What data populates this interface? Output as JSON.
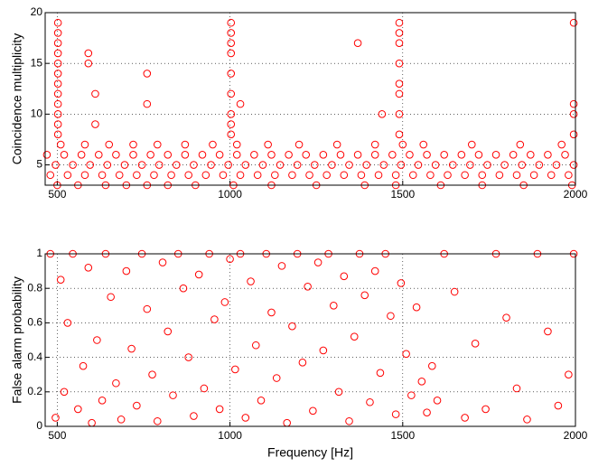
{
  "chart_data": [
    {
      "type": "scatter",
      "ylabel": "Coincidence multiplicity",
      "color": "#ff0000",
      "grid": true,
      "xlim": [
        465,
        2000
      ],
      "xticks": [
        500,
        1000,
        1500,
        2000
      ],
      "ylim": [
        3,
        20
      ],
      "yticks": [
        5,
        10,
        15,
        20
      ],
      "x": [
        480,
        530,
        580,
        630,
        680,
        730,
        780,
        830,
        880,
        930,
        980,
        1030,
        1080,
        1130,
        1180,
        1230,
        1280,
        1330,
        1380,
        1430,
        1480,
        1530,
        1580,
        1630,
        1680,
        1730,
        1780,
        1830,
        1880,
        1930,
        1980,
        495,
        545,
        595,
        645,
        695,
        745,
        795,
        845,
        895,
        945,
        995,
        1045,
        1095,
        1145,
        1195,
        1245,
        1295,
        1345,
        1395,
        1445,
        1495,
        1545,
        1595,
        1645,
        1695,
        1745,
        1795,
        1845,
        1895,
        1945,
        1995,
        470,
        520,
        570,
        620,
        670,
        720,
        770,
        820,
        870,
        920,
        970,
        1020,
        1070,
        1120,
        1170,
        1220,
        1270,
        1320,
        1370,
        1420,
        1470,
        1520,
        1570,
        1620,
        1670,
        1720,
        1770,
        1820,
        1870,
        1920,
        1970,
        500,
        560,
        640,
        700,
        760,
        820,
        900,
        1010,
        1120,
        1250,
        1390,
        1480,
        1610,
        1730,
        1850,
        1990,
        510,
        580,
        650,
        720,
        790,
        870,
        950,
        1020,
        1110,
        1200,
        1310,
        1420,
        1500,
        1560,
        1700,
        1840,
        1960,
        502,
        502,
        502,
        502,
        502,
        502,
        502,
        502,
        502,
        502,
        502,
        502,
        1003,
        1003,
        1003,
        1003,
        1003,
        1003,
        1003,
        1003,
        1003,
        1490,
        1490,
        1490,
        1490,
        1490,
        1490,
        1490,
        1490,
        1995,
        1995,
        1995,
        1995,
        590,
        590,
        610,
        760,
        760,
        1370,
        1440,
        610,
        1030
      ],
      "values": [
        4,
        4,
        4,
        4,
        4,
        4,
        4,
        4,
        4,
        4,
        4,
        4,
        4,
        4,
        4,
        4,
        4,
        4,
        4,
        4,
        4,
        4,
        4,
        4,
        4,
        4,
        4,
        4,
        4,
        4,
        4,
        5,
        5,
        5,
        5,
        5,
        5,
        5,
        5,
        5,
        5,
        5,
        5,
        5,
        5,
        5,
        5,
        5,
        5,
        5,
        5,
        5,
        5,
        5,
        5,
        5,
        5,
        5,
        5,
        5,
        5,
        5,
        6,
        6,
        6,
        6,
        6,
        6,
        6,
        6,
        6,
        6,
        6,
        6,
        6,
        6,
        6,
        6,
        6,
        6,
        6,
        6,
        6,
        6,
        6,
        6,
        6,
        6,
        6,
        6,
        6,
        6,
        6,
        3,
        3,
        3,
        3,
        3,
        3,
        3,
        3,
        3,
        3,
        3,
        3,
        3,
        3,
        3,
        3,
        7,
        7,
        7,
        7,
        7,
        7,
        7,
        7,
        7,
        7,
        7,
        7,
        7,
        7,
        7,
        7,
        7,
        8,
        9,
        10,
        11,
        12,
        13,
        14,
        15,
        16,
        17,
        18,
        19,
        8,
        9,
        10,
        12,
        14,
        16,
        17,
        18,
        19,
        8,
        10,
        12,
        13,
        15,
        17,
        18,
        19,
        8,
        10,
        11,
        19,
        16,
        15,
        12,
        14,
        11,
        17,
        10,
        9,
        11
      ]
    },
    {
      "type": "scatter",
      "ylabel": "False alarm probability",
      "xlabel": "Frequency [Hz]",
      "color": "#ff0000",
      "grid": true,
      "xlim": [
        465,
        2000
      ],
      "xticks": [
        500,
        1000,
        1500,
        2000
      ],
      "ylim": [
        0,
        1
      ],
      "yticks": [
        0,
        0.2,
        0.4,
        0.6,
        0.8,
        1
      ],
      "x": [
        480,
        495,
        510,
        520,
        530,
        545,
        560,
        575,
        590,
        600,
        615,
        630,
        640,
        655,
        670,
        685,
        700,
        715,
        730,
        745,
        760,
        775,
        790,
        805,
        820,
        835,
        850,
        865,
        880,
        895,
        910,
        925,
        940,
        955,
        970,
        985,
        1000,
        1015,
        1030,
        1045,
        1060,
        1075,
        1090,
        1105,
        1120,
        1135,
        1150,
        1165,
        1180,
        1195,
        1210,
        1225,
        1240,
        1255,
        1270,
        1285,
        1300,
        1315,
        1330,
        1345,
        1360,
        1375,
        1390,
        1405,
        1420,
        1435,
        1450,
        1465,
        1480,
        1495,
        1510,
        1525,
        1540,
        1555,
        1570,
        1585,
        1600,
        1620,
        1650,
        1680,
        1710,
        1740,
        1770,
        1800,
        1830,
        1860,
        1890,
        1920,
        1950,
        1980,
        1995
      ],
      "values": [
        1,
        0.05,
        0.85,
        0.2,
        0.6,
        1,
        0.1,
        0.35,
        0.92,
        0.02,
        0.5,
        0.15,
        1,
        0.75,
        0.25,
        0.04,
        0.9,
        0.45,
        0.12,
        1,
        0.68,
        0.3,
        0.03,
        0.95,
        0.55,
        0.18,
        1,
        0.8,
        0.4,
        0.06,
        0.88,
        0.22,
        1,
        0.62,
        0.1,
        0.72,
        0.97,
        0.33,
        1,
        0.05,
        0.84,
        0.47,
        0.15,
        1,
        0.66,
        0.28,
        0.93,
        0.02,
        0.58,
        1,
        0.37,
        0.81,
        0.09,
        0.95,
        0.44,
        1,
        0.7,
        0.2,
        0.87,
        0.03,
        0.52,
        1,
        0.76,
        0.14,
        0.9,
        0.31,
        1,
        0.64,
        0.07,
        0.83,
        0.42,
        0.18,
        0.69,
        0.26,
        0.08,
        0.35,
        0.15,
        1,
        0.78,
        0.05,
        0.48,
        0.1,
        1,
        0.63,
        0.22,
        0.04,
        1,
        0.55,
        0.12,
        0.3,
        1
      ]
    }
  ]
}
